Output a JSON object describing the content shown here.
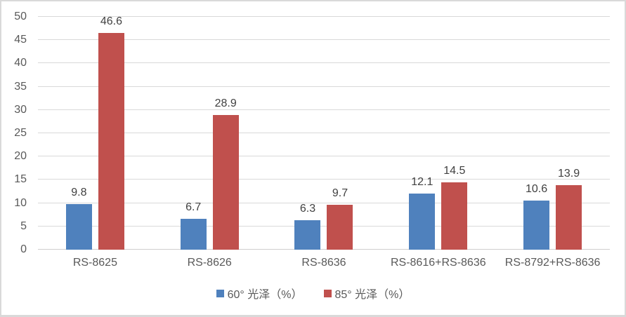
{
  "chart_data": {
    "type": "bar",
    "categories": [
      "RS-8625",
      "RS-8626",
      "RS-8636",
      "RS-8616+RS-8636",
      "RS-8792+RS-8636"
    ],
    "series": [
      {
        "name": "60° 光泽（%）",
        "color": "#4F81BD",
        "values": [
          9.8,
          6.7,
          6.3,
          12.1,
          10.6
        ]
      },
      {
        "name": "85° 光泽（%）",
        "color": "#C0504D",
        "values": [
          46.6,
          28.9,
          9.7,
          14.5,
          13.9
        ]
      }
    ],
    "data_labels": [
      "9.8",
      "6.7",
      "6.3",
      "12.1",
      "10.6",
      "46.6",
      "28.9",
      "9.7",
      "14.5",
      "13.9"
    ],
    "ylim": [
      0,
      50
    ],
    "yticks": [
      0,
      5,
      10,
      15,
      20,
      25,
      30,
      35,
      40,
      45,
      50
    ],
    "grid": true,
    "legend_position": "bottom"
  },
  "colors": {
    "gridline": "#D9D9D9",
    "axis_line": "#D0CECE",
    "axis_text": "#595959",
    "data_label_text": "#404040",
    "frame_border": "#D9D9D9",
    "background": "#FFFFFF"
  }
}
